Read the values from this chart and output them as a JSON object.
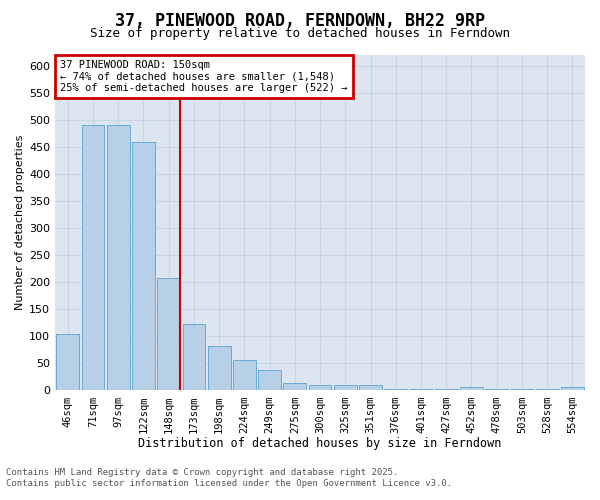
{
  "title": "37, PINEWOOD ROAD, FERNDOWN, BH22 9RP",
  "subtitle": "Size of property relative to detached houses in Ferndown",
  "xlabel": "Distribution of detached houses by size in Ferndown",
  "ylabel": "Number of detached properties",
  "footer_line1": "Contains HM Land Registry data © Crown copyright and database right 2025.",
  "footer_line2": "Contains public sector information licensed under the Open Government Licence v3.0.",
  "categories": [
    "46sqm",
    "71sqm",
    "97sqm",
    "122sqm",
    "148sqm",
    "173sqm",
    "198sqm",
    "224sqm",
    "249sqm",
    "275sqm",
    "300sqm",
    "325sqm",
    "351sqm",
    "376sqm",
    "401sqm",
    "427sqm",
    "452sqm",
    "478sqm",
    "503sqm",
    "528sqm",
    "554sqm"
  ],
  "values": [
    105,
    490,
    490,
    460,
    207,
    122,
    82,
    57,
    38,
    14,
    10,
    11,
    11,
    2,
    2,
    2,
    6,
    2,
    2,
    2,
    6
  ],
  "bar_color": "#b8cfe8",
  "bar_edge_color": "#6aaad4",
  "grid_color": "#c8d4e8",
  "background_color": "#dde6f0",
  "vline_color": "#cc0000",
  "vline_x_index": 4,
  "annotation_text": "37 PINEWOOD ROAD: 150sqm\n← 74% of detached houses are smaller (1,548)\n25% of semi-detached houses are larger (522) →",
  "annotation_box_facecolor": "#ffffff",
  "annotation_box_edgecolor": "#cc0000",
  "ylim": [
    0,
    620
  ],
  "yticks": [
    0,
    50,
    100,
    150,
    200,
    250,
    300,
    350,
    400,
    450,
    500,
    550,
    600
  ]
}
